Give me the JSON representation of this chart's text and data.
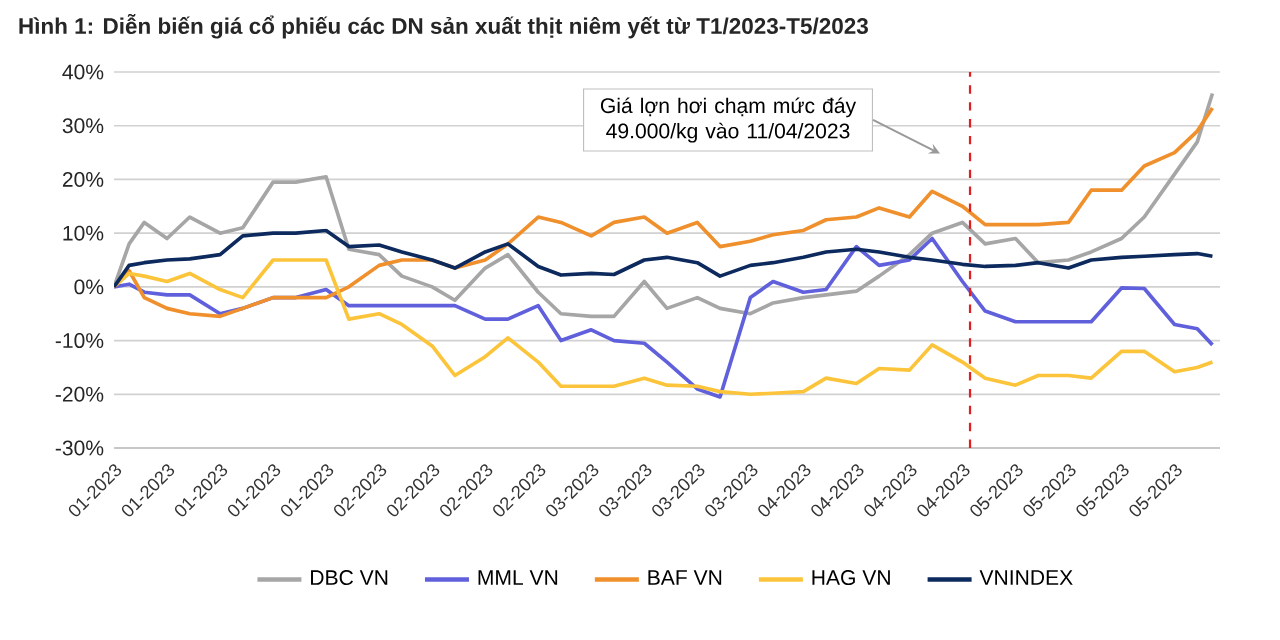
{
  "chart_data": {
    "type": "line",
    "title": "Hình 1: Diễn biến giá cổ phiếu các DN sản xuất thịt niêm yết từ T1/2023-T5/2023",
    "x": [
      "2023-01-03",
      "2023-01-05",
      "2023-01-07",
      "2023-01-10",
      "2023-01-13",
      "2023-01-17",
      "2023-01-20",
      "2023-01-24",
      "2023-01-27",
      "2023-01-31",
      "2023-02-03",
      "2023-02-07",
      "2023-02-10",
      "2023-02-14",
      "2023-02-17",
      "2023-02-21",
      "2023-02-24",
      "2023-02-28",
      "2023-03-03",
      "2023-03-07",
      "2023-03-10",
      "2023-03-14",
      "2023-03-17",
      "2023-03-21",
      "2023-03-24",
      "2023-03-28",
      "2023-03-31",
      "2023-04-04",
      "2023-04-07",
      "2023-04-11",
      "2023-04-14",
      "2023-04-18",
      "2023-04-21",
      "2023-04-25",
      "2023-04-28",
      "2023-05-02",
      "2023-05-05",
      "2023-05-09",
      "2023-05-12",
      "2023-05-16",
      "2023-05-19",
      "2023-05-23",
      "2023-05-26",
      "2023-05-28"
    ],
    "series": [
      {
        "name": "DBC VN",
        "color": "#a6a6a6",
        "values": [
          0,
          8,
          12,
          9,
          13,
          10,
          11,
          19.5,
          19.5,
          20.5,
          7,
          6,
          2,
          0,
          -2.5,
          3.5,
          6,
          -1,
          -5,
          -5.5,
          -5.5,
          1,
          -4,
          -2,
          -4,
          -5,
          -3,
          -2,
          -1.5,
          -0.8,
          2,
          6,
          10,
          12,
          8,
          9,
          4.5,
          5,
          6.5,
          9,
          13,
          21,
          27,
          36
        ]
      },
      {
        "name": "MML VN",
        "color": "#6060dc",
        "values": [
          0,
          0.5,
          -1,
          -1.5,
          -1.5,
          -5,
          -4,
          -2,
          -2,
          -0.5,
          -3.5,
          -3.5,
          -3.5,
          -3.5,
          -3.5,
          -6,
          -6,
          -3.5,
          -10,
          -8,
          -10,
          -10.5,
          -14,
          -19,
          -20.5,
          -2,
          1,
          -1,
          -0.5,
          7.5,
          4,
          5,
          9,
          1,
          -4.5,
          -6.5,
          -6.5,
          -6.5,
          -6.5,
          -0.2,
          -0.3,
          -7,
          -7.8,
          -10.8
        ]
      },
      {
        "name": "BAF VN",
        "color": "#f0902c",
        "values": [
          0,
          3,
          -2,
          -4,
          -5,
          -5.5,
          -4,
          -2,
          -2,
          -2,
          0,
          4,
          5,
          5,
          3.5,
          5,
          8,
          13,
          12,
          9.5,
          12,
          13,
          10,
          12,
          7.5,
          8.5,
          9.7,
          10.5,
          12.5,
          13,
          14.7,
          13,
          17.8,
          15,
          11.6,
          11.6,
          11.6,
          12,
          18,
          18,
          22.5,
          25,
          29,
          33.3
        ]
      },
      {
        "name": "HAG VN",
        "color": "#fcc43a",
        "values": [
          0,
          2.5,
          2,
          1,
          2.5,
          -0.5,
          -2,
          5,
          5,
          5,
          -6,
          -5,
          -7,
          -11,
          -16.5,
          -13,
          -9.5,
          -14,
          -18.5,
          -18.5,
          -18.5,
          -17,
          -18.3,
          -18.5,
          -19.5,
          -20,
          -19.8,
          -19.5,
          -17,
          -18,
          -15.2,
          -15.5,
          -10.8,
          -14,
          -17,
          -18.3,
          -16.5,
          -16.5,
          -17,
          -12,
          -12,
          -15.8,
          -15,
          -14
        ]
      },
      {
        "name": "VNINDEX",
        "color": "#0d2a5e",
        "values": [
          0,
          4,
          4.5,
          5,
          5.2,
          6,
          9.5,
          10,
          10,
          10.5,
          7.5,
          7.8,
          6.5,
          5,
          3.5,
          6.5,
          8,
          3.8,
          2.2,
          2.5,
          2.3,
          5,
          5.5,
          4.5,
          2,
          4,
          4.5,
          5.5,
          6.5,
          7,
          6.5,
          5.5,
          5,
          4.2,
          3.8,
          4,
          4.5,
          3.5,
          5,
          5.5,
          5.7,
          6,
          6.2,
          5.7
        ]
      }
    ],
    "xlim": [
      "2023-01-03",
      "2023-05-29"
    ],
    "xticks": [
      {
        "value": "2023-01-03",
        "label": "01-2023"
      },
      {
        "value": "2023-01-10",
        "label": "01-2023"
      },
      {
        "value": "2023-01-17",
        "label": "01-2023"
      },
      {
        "value": "2023-01-24",
        "label": "01-2023"
      },
      {
        "value": "2023-01-31",
        "label": "01-2023"
      },
      {
        "value": "2023-02-07",
        "label": "02-2023"
      },
      {
        "value": "2023-02-14",
        "label": "02-2023"
      },
      {
        "value": "2023-02-21",
        "label": "02-2023"
      },
      {
        "value": "2023-02-28",
        "label": "02-2023"
      },
      {
        "value": "2023-03-07",
        "label": "03-2023"
      },
      {
        "value": "2023-03-14",
        "label": "03-2023"
      },
      {
        "value": "2023-03-21",
        "label": "03-2023"
      },
      {
        "value": "2023-03-28",
        "label": "03-2023"
      },
      {
        "value": "2023-04-04",
        "label": "04-2023"
      },
      {
        "value": "2023-04-11",
        "label": "04-2023"
      },
      {
        "value": "2023-04-18",
        "label": "04-2023"
      },
      {
        "value": "2023-04-25",
        "label": "04-2023"
      },
      {
        "value": "2023-05-02",
        "label": "05-2023"
      },
      {
        "value": "2023-05-09",
        "label": "05-2023"
      },
      {
        "value": "2023-05-16",
        "label": "05-2023"
      },
      {
        "value": "2023-05-23",
        "label": "05-2023"
      }
    ],
    "ylim": [
      -30,
      40
    ],
    "yticks": [
      {
        "value": -30,
        "label": "-30%"
      },
      {
        "value": -20,
        "label": "-20%"
      },
      {
        "value": -10,
        "label": "-10%"
      },
      {
        "value": 0,
        "label": "0%"
      },
      {
        "value": 10,
        "label": "10%"
      },
      {
        "value": 20,
        "label": "20%"
      },
      {
        "value": 30,
        "label": "30%"
      },
      {
        "value": 40,
        "label": "40%"
      }
    ],
    "grid": "y",
    "legend": "bottom",
    "marker": "none",
    "line_style": "solid",
    "ref_lines": [
      {
        "axis": "x",
        "value": "2023-04-26",
        "color": "#e02020",
        "line_style": "dashed"
      }
    ],
    "annotations": [
      "Giá lợn hơi chạm mức đáy 49.000/kg vào 11/04/2023"
    ]
  }
}
